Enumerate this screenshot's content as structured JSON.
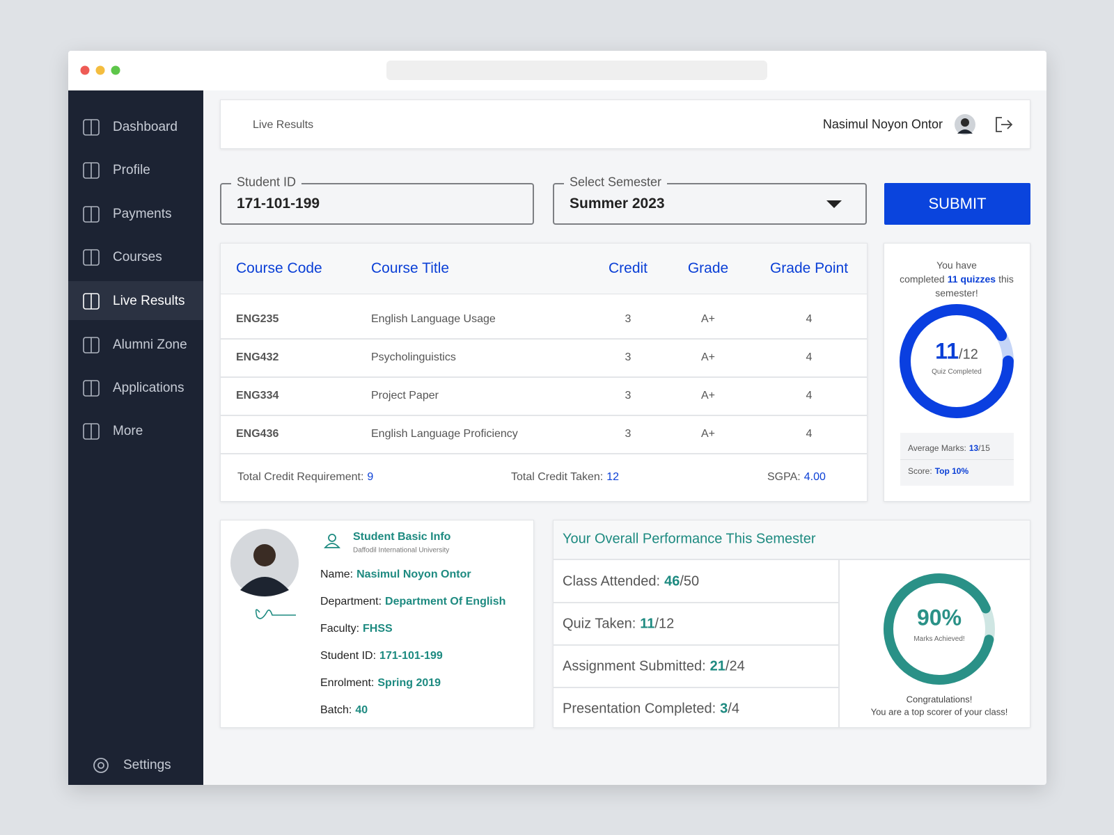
{
  "sidebar": {
    "items": [
      "Dashboard",
      "Profile",
      "Payments",
      "Courses",
      "Live Results",
      "Alumni Zone",
      "Applications",
      "More"
    ],
    "settings": "Settings"
  },
  "header": {
    "page_title": "Live Results",
    "user_name": "Nasimul Noyon Ontor"
  },
  "form": {
    "student_id_label": "Student ID",
    "student_id": "171-101-199",
    "semester_label": "Select Semester",
    "semester": "Summer 2023",
    "submit": "SUBMIT"
  },
  "results": {
    "columns": [
      "Course Code",
      "Course Title",
      "Credit",
      "Grade",
      "Grade Point"
    ],
    "rows": [
      [
        "ENG235",
        "English Language Usage",
        3,
        "A+",
        4
      ],
      [
        "ENG432",
        "Psycholinguistics",
        3,
        "A+",
        4
      ],
      [
        "ENG334",
        "Project Paper",
        3,
        "A+",
        4
      ],
      [
        "ENG436",
        "English Language Proficiency",
        3,
        "A+",
        4
      ]
    ],
    "totals": [
      {
        "label": "Total Credit Requirement:",
        "value": 9
      },
      {
        "label": "Total Credit Taken:",
        "value": 12
      },
      {
        "label": "SGPA:",
        "value": "4.00"
      }
    ]
  },
  "separator": "/",
  "quiz_card": {
    "message": {
      "before": "You have completed",
      "count": 11,
      "highlight": "quizzes",
      "after": "this semester!"
    },
    "ring": {
      "done": 11,
      "total": 12,
      "caption": "Quiz Completed"
    },
    "average": {
      "label": "Average Marks:",
      "done": 13,
      "total": 15
    },
    "score": {
      "label": "Score:",
      "value": "Top 10%"
    }
  },
  "student_card": {
    "title": "Student Basic Info",
    "subtitle": "Daffodil International University",
    "fields": [
      {
        "label": "Name:",
        "value": "Nasimul Noyon Ontor"
      },
      {
        "label": "Department:",
        "value": "Department Of English"
      },
      {
        "label": "Faculty:",
        "value": "FHSS"
      },
      {
        "label": "Student ID:",
        "value": "171-101-199"
      },
      {
        "label": "Enrolment:",
        "value": "Spring 2019"
      },
      {
        "label": "Batch:",
        "value": 40
      }
    ]
  },
  "performance": {
    "title": "Your Overall Performance This Semester",
    "items": [
      {
        "label": "Class Attended:",
        "done": 46,
        "total": 50
      },
      {
        "label": "Quiz Taken:",
        "done": 11,
        "total": 12
      },
      {
        "label": "Assignment Submitted:",
        "done": 21,
        "total": 24
      },
      {
        "label": "Presentation Completed:",
        "done": 3,
        "total": 4
      }
    ],
    "ring": {
      "value": 90,
      "value_label": "90%",
      "caption": "Marks Achieved!"
    },
    "message": [
      "Congratulations!",
      "You are a top scorer of your class!"
    ]
  }
}
